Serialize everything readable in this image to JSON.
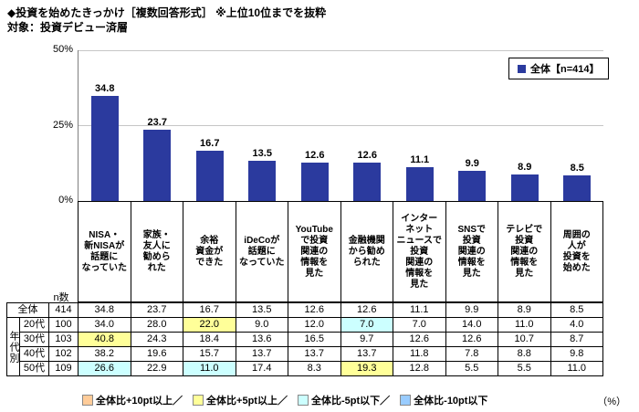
{
  "title": {
    "line1": "◆投資を始めたきっかけ［複数回答形式］ ※上位10位までを抜粋",
    "line2": "対象：投資デビュー済層"
  },
  "legend": {
    "series_label": "全体【n=414】"
  },
  "y_axis": {
    "ticks": [
      "50%",
      "25%",
      "0%"
    ]
  },
  "colors": {
    "bar": "#2b3a9e",
    "p10": "#ffcc99",
    "p5": "#ffff99",
    "m5": "#ccffff",
    "m10": "#99ccff"
  },
  "chart_data": {
    "type": "bar",
    "title": "投資を始めたきっかけ（複数回答形式・上位10位）",
    "series_name": "全体【n=414】",
    "categories": [
      "NISA・新NISAが話題になっていた",
      "家族・友人に勧められた",
      "余裕資金ができた",
      "iDeCoが話題になっていた",
      "YouTubeで投資関連の情報を見た",
      "金融機関から勧められた",
      "インターネットニュースで投資関連の情報を見た",
      "SNSで投資関連の情報を見た",
      "テレビで投資関連の情報を見た",
      "周囲の人が投資を始めた"
    ],
    "category_lines": [
      "NISA・\n新NISAが\n話題に\nなっていた",
      "家族・\n友人に\n勧めら\nれた",
      "余裕\n資金が\nできた",
      "iDeCoが\n話題に\nなっていた",
      "YouTube\nで投資\n関連の\n情報を\n見た",
      "金融機関\nから勧め\nられた",
      "インター\nネット\nニュースで\n投資\n関連の\n情報を\n見た",
      "SNSで\n投資\n関連の\n情報を\n見た",
      "テレビで\n投資\n関連の\n情報を\n見た",
      "周囲の\n人が\n投資を\n始めた"
    ],
    "values": [
      34.8,
      23.7,
      16.7,
      13.5,
      12.6,
      12.6,
      11.1,
      9.9,
      8.9,
      8.5
    ],
    "ylim": [
      0,
      50
    ],
    "unit": "%",
    "grid": true,
    "legend_position": "top-right"
  },
  "table": {
    "n_header": "n数",
    "group_label": "年代別",
    "rows": [
      {
        "label": "全体",
        "n": "414",
        "values": [
          34.8,
          23.7,
          16.7,
          13.5,
          12.6,
          12.6,
          11.1,
          9.9,
          8.9,
          8.5
        ],
        "hl": [
          null,
          null,
          null,
          null,
          null,
          null,
          null,
          null,
          null,
          null
        ]
      },
      {
        "label": "20代",
        "n": "100",
        "values": [
          34.0,
          28.0,
          22.0,
          9.0,
          12.0,
          7.0,
          7.0,
          14.0,
          11.0,
          4.0
        ],
        "hl": [
          null,
          null,
          "p5",
          null,
          null,
          "m5",
          null,
          null,
          null,
          null
        ]
      },
      {
        "label": "30代",
        "n": "103",
        "values": [
          40.8,
          24.3,
          18.4,
          13.6,
          16.5,
          9.7,
          12.6,
          12.6,
          10.7,
          8.7
        ],
        "hl": [
          "p5",
          null,
          null,
          null,
          null,
          null,
          null,
          null,
          null,
          null
        ]
      },
      {
        "label": "40代",
        "n": "102",
        "values": [
          38.2,
          19.6,
          15.7,
          13.7,
          13.7,
          13.7,
          11.8,
          7.8,
          8.8,
          9.8
        ],
        "hl": [
          null,
          null,
          null,
          null,
          null,
          null,
          null,
          null,
          null,
          null
        ]
      },
      {
        "label": "50代",
        "n": "109",
        "values": [
          26.6,
          22.9,
          11.0,
          17.4,
          8.3,
          19.3,
          12.8,
          5.5,
          5.5,
          11.0
        ],
        "hl": [
          "m5",
          null,
          "m5",
          null,
          null,
          "p5",
          null,
          null,
          null,
          null
        ]
      }
    ]
  },
  "footer_legend": {
    "items": [
      {
        "key": "p10",
        "label": "全体比+10pt以上／"
      },
      {
        "key": "p5",
        "label": "全体比+5pt以上／"
      },
      {
        "key": "m5",
        "label": "全体比-5pt以下／"
      },
      {
        "key": "m10",
        "label": "全体比-10pt以下"
      }
    ],
    "unit": "（%）"
  }
}
